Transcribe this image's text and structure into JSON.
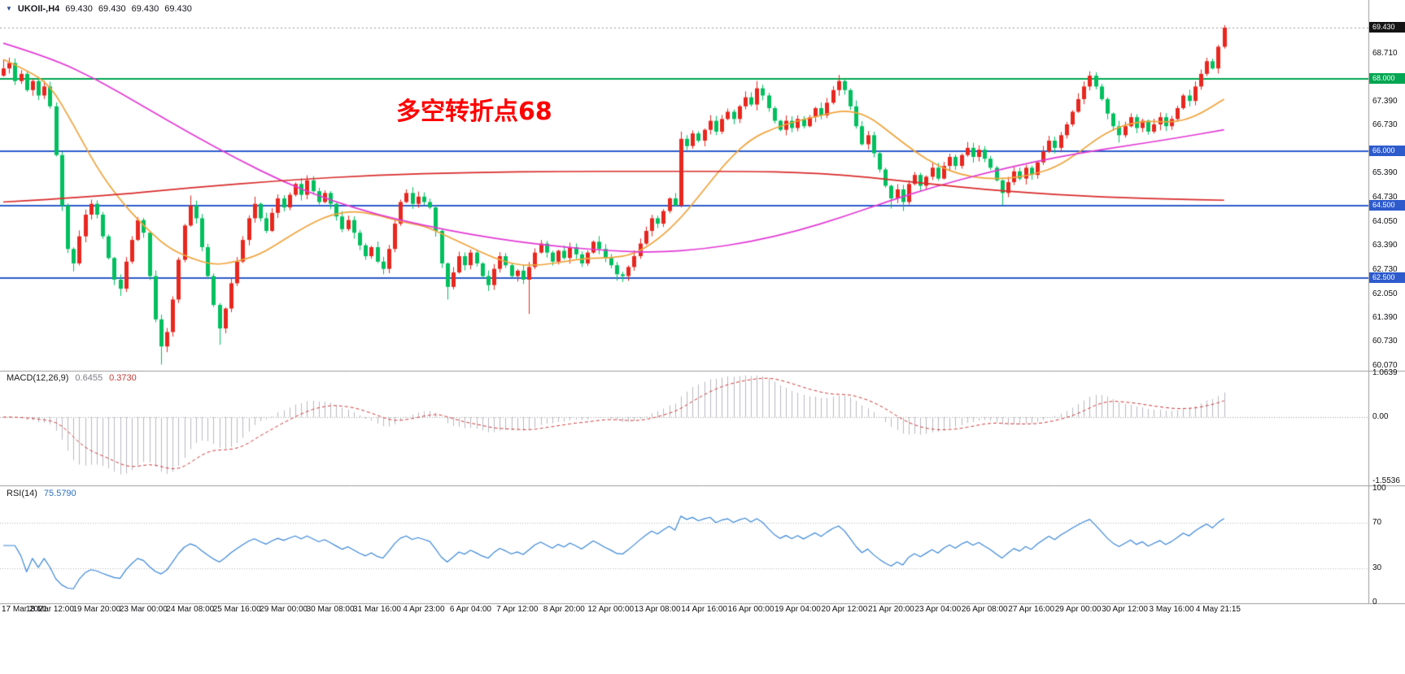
{
  "header": {
    "dropdown_icon": "▼",
    "symbol_period": "UKOIl-,H4",
    "ohlc": [
      "69.430",
      "69.430",
      "69.430",
      "69.430"
    ]
  },
  "main_chart": {
    "annotation": {
      "text": "多空转折点68",
      "color": "#ff0000"
    },
    "levels": [
      {
        "price": 68.0,
        "label": "68.000",
        "color": "#00a651"
      },
      {
        "price": 66.0,
        "label": "66.000",
        "color": "#2d5bcc"
      },
      {
        "price": 64.5,
        "label": "64.500",
        "color": "#2d5bcc"
      },
      {
        "price": 62.5,
        "label": "62.500",
        "color": "#2d5bcc"
      }
    ],
    "current_price": {
      "label": "69.430",
      "price": 69.43,
      "tag_color": "#141414"
    }
  },
  "chart_data": {
    "type": "candlestick",
    "symbol": "UKOIl-",
    "timeframe": "H4",
    "title": "UKOIl-,H4 69.430 69.430 69.430 69.430",
    "ylim": [
      59.95,
      69.7
    ],
    "up_color": "#e8271f",
    "down_color": "#00bf5e",
    "price_axis_ticks": [
      {
        "label": "68.710",
        "price": 68.71
      },
      {
        "label": "67.390",
        "price": 67.39
      },
      {
        "label": "66.730",
        "price": 66.73
      },
      {
        "label": "65.390",
        "price": 65.39
      },
      {
        "label": "64.730",
        "price": 64.73
      },
      {
        "label": "64.050",
        "price": 64.05
      },
      {
        "label": "63.390",
        "price": 63.39
      },
      {
        "label": "62.730",
        "price": 62.73
      },
      {
        "label": "62.050",
        "price": 62.05
      },
      {
        "label": "61.390",
        "price": 61.39
      },
      {
        "label": "60.730",
        "price": 60.73
      },
      {
        "label": "60.070",
        "price": 60.07
      }
    ],
    "bars_per_label": 8,
    "x_labels": [
      "17 Mar 2021",
      "18 Mar 12:00",
      "19 Mar 20:00",
      "23 Mar 00:00",
      "24 Mar 08:00",
      "25 Mar 16:00",
      "29 Mar 00:00",
      "30 Mar 08:00",
      "31 Mar 16:00",
      "4 Apr 23:00",
      "6 Apr 04:00",
      "7 Apr 12:00",
      "8 Apr 20:00",
      "12 Apr 00:00",
      "13 Apr 08:00",
      "14 Apr 16:00",
      "16 Apr 00:00",
      "19 Apr 04:00",
      "20 Apr 12:00",
      "21 Apr 20:00",
      "23 Apr 04:00",
      "26 Apr 08:00",
      "27 Apr 16:00",
      "29 Apr 00:00",
      "30 Apr 12:00",
      "3 May 16:00",
      "4 May 21:15"
    ],
    "first_open": 68.1,
    "closes": [
      68.3,
      68.45,
      67.95,
      68.15,
      67.7,
      67.95,
      67.55,
      67.8,
      67.25,
      65.9,
      64.5,
      63.3,
      62.9,
      63.65,
      64.25,
      64.55,
      64.25,
      63.65,
      63.05,
      62.45,
      62.2,
      62.95,
      63.55,
      64.1,
      63.75,
      62.55,
      61.35,
      60.6,
      61.0,
      61.9,
      63.0,
      63.95,
      64.5,
      64.15,
      63.35,
      62.55,
      61.75,
      61.1,
      61.65,
      62.35,
      62.95,
      63.55,
      64.15,
      64.55,
      64.15,
      63.8,
      64.3,
      64.7,
      64.45,
      64.8,
      65.1,
      64.8,
      65.2,
      64.9,
      64.6,
      64.85,
      64.55,
      64.2,
      63.85,
      64.1,
      63.75,
      63.4,
      63.1,
      63.35,
      62.95,
      62.75,
      63.3,
      64.0,
      64.6,
      64.85,
      64.55,
      64.75,
      64.6,
      64.45,
      63.8,
      62.9,
      62.25,
      62.65,
      63.1,
      62.85,
      63.2,
      62.9,
      62.55,
      62.3,
      62.75,
      63.1,
      62.85,
      62.55,
      62.7,
      62.45,
      62.8,
      63.2,
      63.45,
      63.2,
      62.95,
      63.25,
      63.05,
      63.35,
      63.15,
      62.9,
      63.2,
      63.5,
      63.3,
      63.05,
      62.85,
      62.6,
      62.55,
      62.8,
      63.1,
      63.45,
      63.8,
      64.15,
      64.0,
      64.35,
      64.7,
      64.5,
      66.35,
      66.15,
      66.5,
      66.3,
      66.6,
      66.85,
      66.55,
      66.9,
      67.1,
      66.9,
      67.25,
      67.5,
      67.3,
      67.75,
      67.55,
      67.2,
      66.85,
      66.6,
      66.85,
      66.65,
      66.9,
      66.7,
      66.95,
      67.2,
      67.0,
      67.35,
      67.7,
      67.95,
      67.7,
      67.25,
      66.7,
      66.2,
      66.45,
      65.95,
      65.5,
      65.05,
      64.7,
      64.95,
      64.6,
      65.1,
      65.35,
      65.05,
      65.3,
      65.55,
      65.25,
      65.6,
      65.85,
      65.6,
      65.9,
      66.1,
      65.85,
      66.05,
      65.8,
      65.55,
      65.2,
      64.85,
      65.15,
      65.45,
      65.25,
      65.55,
      65.35,
      65.7,
      66.0,
      66.3,
      66.1,
      66.45,
      66.75,
      67.1,
      67.45,
      67.8,
      68.1,
      67.8,
      67.45,
      67.05,
      66.7,
      66.45,
      66.7,
      66.95,
      66.65,
      66.85,
      66.55,
      66.75,
      66.95,
      66.7,
      66.9,
      67.2,
      67.55,
      67.4,
      67.8,
      68.15,
      68.5,
      68.3,
      68.9,
      69.43
    ],
    "wick_overrides": {
      "0": [
        68.55,
        null
      ],
      "12": [
        null,
        62.68
      ],
      "20": [
        null,
        62.0
      ],
      "27": [
        null,
        60.1
      ],
      "32": [
        64.78,
        null
      ],
      "37": [
        null,
        60.65
      ],
      "43": [
        64.75,
        null
      ],
      "69": [
        64.95,
        null
      ],
      "76": [
        null,
        61.9
      ],
      "90": [
        null,
        61.5
      ],
      "105": [
        null,
        62.42
      ],
      "116": [
        66.55,
        64.45
      ],
      "129": [
        67.95,
        null
      ],
      "143": [
        68.12,
        null
      ],
      "152": [
        null,
        64.42
      ],
      "154": [
        null,
        64.35
      ],
      "171": [
        null,
        64.52
      ],
      "186": [
        68.22,
        null
      ],
      "191": [
        null,
        66.25
      ],
      "209": [
        69.5,
        68.85
      ]
    },
    "ma_lines": [
      {
        "name": "ma-fast-orange",
        "color": "#f0a43c",
        "points": [
          [
            0,
            68.55
          ],
          [
            4,
            68.25
          ],
          [
            8,
            67.85
          ],
          [
            12,
            66.75
          ],
          [
            16,
            65.55
          ],
          [
            20,
            64.65
          ],
          [
            24,
            63.95
          ],
          [
            28,
            63.35
          ],
          [
            32,
            63.05
          ],
          [
            36,
            62.85
          ],
          [
            40,
            62.95
          ],
          [
            44,
            63.15
          ],
          [
            48,
            63.55
          ],
          [
            52,
            63.95
          ],
          [
            56,
            64.25
          ],
          [
            60,
            64.35
          ],
          [
            64,
            64.25
          ],
          [
            68,
            64.05
          ],
          [
            72,
            63.95
          ],
          [
            76,
            63.65
          ],
          [
            80,
            63.35
          ],
          [
            84,
            63.05
          ],
          [
            88,
            62.85
          ],
          [
            92,
            62.85
          ],
          [
            96,
            62.95
          ],
          [
            100,
            63.05
          ],
          [
            104,
            63.05
          ],
          [
            108,
            63.15
          ],
          [
            112,
            63.55
          ],
          [
            116,
            64.15
          ],
          [
            120,
            64.95
          ],
          [
            124,
            65.75
          ],
          [
            128,
            66.35
          ],
          [
            132,
            66.65
          ],
          [
            136,
            66.85
          ],
          [
            140,
            67.0
          ],
          [
            144,
            67.15
          ],
          [
            148,
            67.0
          ],
          [
            152,
            66.5
          ],
          [
            156,
            66.0
          ],
          [
            160,
            65.6
          ],
          [
            164,
            65.35
          ],
          [
            168,
            65.25
          ],
          [
            172,
            65.25
          ],
          [
            176,
            65.35
          ],
          [
            180,
            65.55
          ],
          [
            184,
            65.95
          ],
          [
            188,
            66.45
          ],
          [
            192,
            66.75
          ],
          [
            196,
            66.85
          ],
          [
            200,
            66.8
          ],
          [
            204,
            66.95
          ],
          [
            209,
            67.45
          ]
        ]
      },
      {
        "name": "ma-mid-magenta",
        "color": "#e23ad5",
        "points": [
          [
            0,
            69.0
          ],
          [
            8,
            68.6
          ],
          [
            16,
            68.0
          ],
          [
            24,
            67.25
          ],
          [
            32,
            66.5
          ],
          [
            40,
            65.8
          ],
          [
            48,
            65.15
          ],
          [
            56,
            64.65
          ],
          [
            64,
            64.25
          ],
          [
            72,
            63.95
          ],
          [
            80,
            63.7
          ],
          [
            88,
            63.5
          ],
          [
            96,
            63.35
          ],
          [
            104,
            63.25
          ],
          [
            112,
            63.2
          ],
          [
            120,
            63.3
          ],
          [
            128,
            63.5
          ],
          [
            136,
            63.8
          ],
          [
            144,
            64.2
          ],
          [
            152,
            64.65
          ],
          [
            160,
            65.05
          ],
          [
            168,
            65.4
          ],
          [
            176,
            65.7
          ],
          [
            184,
            65.95
          ],
          [
            192,
            66.15
          ],
          [
            200,
            66.35
          ],
          [
            209,
            66.6
          ]
        ]
      },
      {
        "name": "ma-slow-red",
        "color": "#d92b2b",
        "points": [
          [
            0,
            64.6
          ],
          [
            16,
            64.75
          ],
          [
            32,
            65.0
          ],
          [
            48,
            65.2
          ],
          [
            64,
            65.35
          ],
          [
            80,
            65.42
          ],
          [
            96,
            65.45
          ],
          [
            112,
            65.45
          ],
          [
            128,
            65.45
          ],
          [
            136,
            65.42
          ],
          [
            144,
            65.35
          ],
          [
            152,
            65.22
          ],
          [
            160,
            65.08
          ],
          [
            168,
            64.95
          ],
          [
            176,
            64.85
          ],
          [
            184,
            64.77
          ],
          [
            192,
            64.72
          ],
          [
            200,
            64.68
          ],
          [
            209,
            64.65
          ]
        ]
      }
    ],
    "macd": {
      "label": "MACD(12,26,9)",
      "values": [
        "0.6455",
        "0.3730"
      ],
      "params": [
        12,
        26,
        9
      ],
      "hist_color": "#b9b9c2",
      "signal_color": "#d03a3a",
      "axis": [
        {
          "label": "1.0639",
          "v": 1.0639
        },
        {
          "label": "0.00",
          "v": 0
        },
        {
          "label": "-1.5536",
          "v": -1.5536
        }
      ]
    },
    "rsi": {
      "label": "RSI(14)",
      "value": "75.5790",
      "period": 14,
      "color": "#3a87d8",
      "levels": [
        70,
        30
      ],
      "axis": [
        {
          "label": "100",
          "v": 100
        },
        {
          "label": "70",
          "v": 70
        },
        {
          "label": "30",
          "v": 30
        },
        {
          "label": "0",
          "v": 0
        }
      ]
    }
  }
}
